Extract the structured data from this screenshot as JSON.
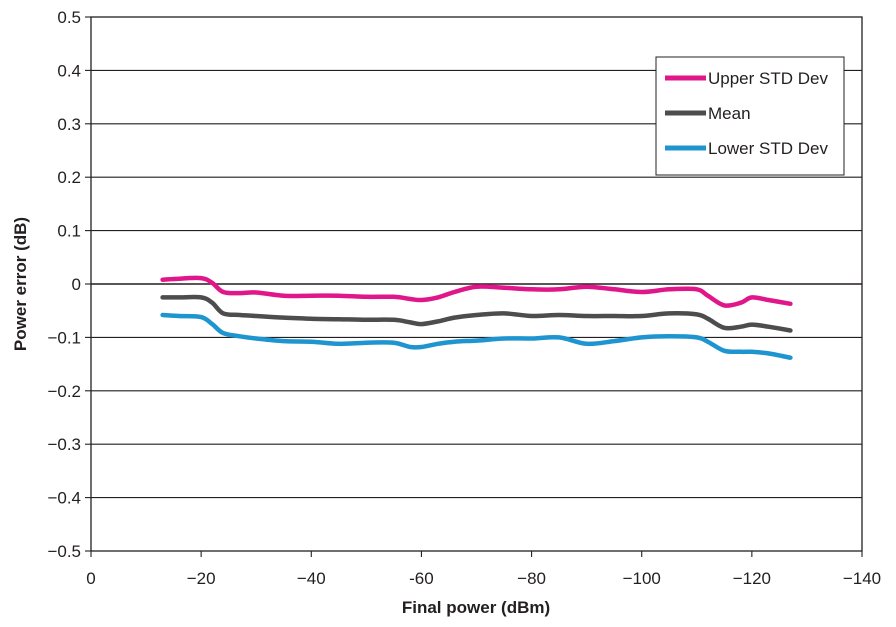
{
  "chart_data": {
    "type": "line",
    "xlabel": "Final power (dBm)",
    "ylabel": "Power error (dB)",
    "xlim": [
      0,
      -140
    ],
    "ylim": [
      -0.5,
      0.5
    ],
    "x_ticks": [
      {
        "value": 0,
        "label": "0"
      },
      {
        "value": -20,
        "label": "−20"
      },
      {
        "value": -40,
        "label": "−40"
      },
      {
        "value": -60,
        "label": "-60"
      },
      {
        "value": -80,
        "label": "−80"
      },
      {
        "value": -100,
        "label": "−100"
      },
      {
        "value": -120,
        "label": "−120"
      },
      {
        "value": -140,
        "label": "−140"
      }
    ],
    "y_ticks": [
      {
        "value": 0.5,
        "label": "0.5"
      },
      {
        "value": 0.4,
        "label": "0.4"
      },
      {
        "value": 0.3,
        "label": "0.3"
      },
      {
        "value": 0.2,
        "label": "0.2"
      },
      {
        "value": 0.1,
        "label": "0.1"
      },
      {
        "value": 0,
        "label": "0"
      },
      {
        "value": -0.1,
        "label": "−0.1"
      },
      {
        "value": -0.2,
        "label": "−0.2"
      },
      {
        "value": -0.3,
        "label": "−0.3"
      },
      {
        "value": -0.4,
        "label": "−0.4"
      },
      {
        "value": -0.5,
        "label": "−0.5"
      }
    ],
    "grid": "horizontal",
    "legend_position": "top-right",
    "x": [
      -13,
      -16,
      -20,
      -22,
      -24,
      -27,
      -30,
      -35,
      -40,
      -45,
      -50,
      -55,
      -58,
      -60,
      -63,
      -66,
      -70,
      -75,
      -80,
      -85,
      -90,
      -95,
      -100,
      -105,
      -110,
      -112,
      -115,
      -118,
      -120,
      -123,
      -127
    ],
    "series": [
      {
        "name": "Upper STD Dev",
        "color": "#e0178a",
        "values": [
          0.008,
          0.01,
          0.011,
          0.002,
          -0.015,
          -0.017,
          -0.016,
          -0.022,
          -0.022,
          -0.022,
          -0.024,
          -0.024,
          -0.028,
          -0.03,
          -0.025,
          -0.015,
          -0.005,
          -0.007,
          -0.01,
          -0.01,
          -0.005,
          -0.01,
          -0.015,
          -0.01,
          -0.01,
          -0.022,
          -0.04,
          -0.035,
          -0.025,
          -0.03,
          -0.037
        ]
      },
      {
        "name": "Mean",
        "color": "#4d4d4f",
        "values": [
          -0.025,
          -0.025,
          -0.025,
          -0.035,
          -0.055,
          -0.058,
          -0.06,
          -0.063,
          -0.065,
          -0.066,
          -0.067,
          -0.067,
          -0.072,
          -0.075,
          -0.07,
          -0.063,
          -0.058,
          -0.055,
          -0.06,
          -0.058,
          -0.06,
          -0.06,
          -0.06,
          -0.055,
          -0.057,
          -0.065,
          -0.082,
          -0.08,
          -0.076,
          -0.08,
          -0.087
        ]
      },
      {
        "name": "Lower STD Dev",
        "color": "#1f95d0",
        "values": [
          -0.058,
          -0.06,
          -0.062,
          -0.075,
          -0.092,
          -0.098,
          -0.102,
          -0.107,
          -0.108,
          -0.112,
          -0.11,
          -0.11,
          -0.118,
          -0.118,
          -0.112,
          -0.108,
          -0.106,
          -0.102,
          -0.102,
          -0.1,
          -0.112,
          -0.107,
          -0.1,
          -0.098,
          -0.1,
          -0.108,
          -0.125,
          -0.127,
          -0.127,
          -0.13,
          -0.138
        ]
      }
    ]
  }
}
